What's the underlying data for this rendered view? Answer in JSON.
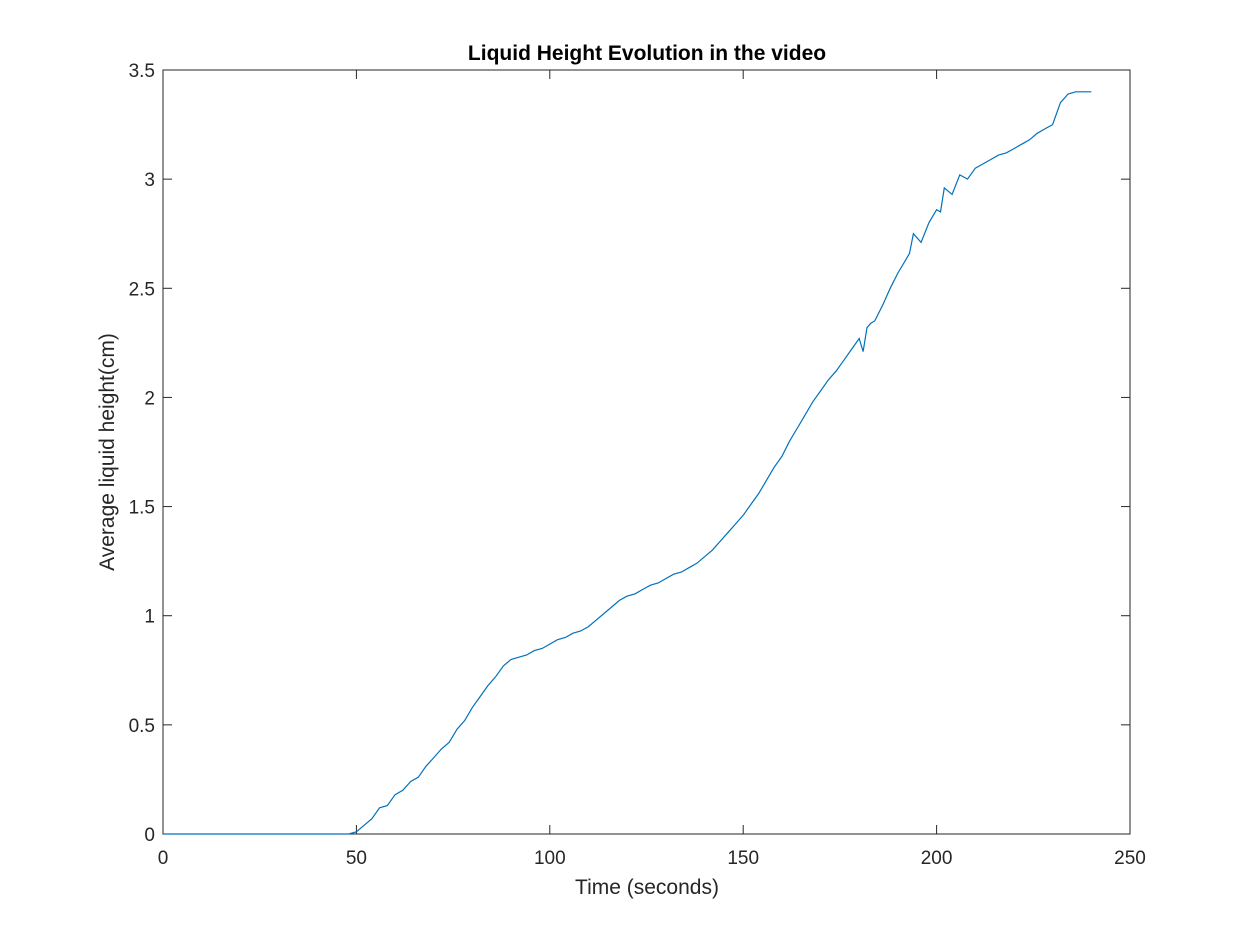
{
  "chart_data": {
    "type": "line",
    "title": "Liquid Height Evolution in the video",
    "xlabel": "Time (seconds)",
    "ylabel": "Average liquid height(cm)",
    "xlim": [
      0,
      250
    ],
    "ylim": [
      0,
      3.5
    ],
    "x_ticks": [
      0,
      50,
      100,
      150,
      200,
      250
    ],
    "x_tick_labels": [
      "0",
      "50",
      "100",
      "150",
      "200",
      "250"
    ],
    "y_ticks": [
      0,
      0.5,
      1,
      1.5,
      2,
      2.5,
      3,
      3.5
    ],
    "y_tick_labels": [
      "0",
      "0.5",
      "1",
      "1.5",
      "2",
      "2.5",
      "3",
      "3.5"
    ],
    "grid": false,
    "line_color": "#0072BD",
    "series": [
      {
        "x": [
          0,
          10,
          20,
          30,
          40,
          48,
          50,
          52,
          54,
          56,
          58,
          60,
          62,
          64,
          66,
          68,
          70,
          72,
          74,
          76,
          78,
          80,
          82,
          84,
          86,
          88,
          90,
          92,
          94,
          96,
          98,
          100,
          102,
          104,
          106,
          108,
          110,
          112,
          114,
          116,
          118,
          120,
          122,
          124,
          126,
          128,
          130,
          132,
          134,
          136,
          138,
          140,
          142,
          144,
          146,
          148,
          150,
          152,
          154,
          156,
          158,
          160,
          162,
          164,
          166,
          168,
          170,
          172,
          174,
          176,
          178,
          180,
          181,
          182,
          183,
          184,
          186,
          188,
          190,
          192,
          193,
          194,
          196,
          198,
          200,
          201,
          202,
          204,
          206,
          208,
          210,
          212,
          214,
          216,
          218,
          220,
          222,
          224,
          226,
          228,
          230,
          232,
          234,
          236,
          238,
          240
        ],
        "y": [
          0,
          0,
          0,
          0,
          0,
          0,
          0.01,
          0.04,
          0.07,
          0.12,
          0.13,
          0.18,
          0.2,
          0.24,
          0.26,
          0.31,
          0.35,
          0.39,
          0.42,
          0.48,
          0.52,
          0.58,
          0.63,
          0.68,
          0.72,
          0.77,
          0.8,
          0.81,
          0.82,
          0.84,
          0.85,
          0.87,
          0.89,
          0.9,
          0.92,
          0.93,
          0.95,
          0.98,
          1.01,
          1.04,
          1.07,
          1.09,
          1.1,
          1.12,
          1.14,
          1.15,
          1.17,
          1.19,
          1.2,
          1.22,
          1.24,
          1.27,
          1.3,
          1.34,
          1.38,
          1.42,
          1.46,
          1.51,
          1.56,
          1.62,
          1.68,
          1.73,
          1.8,
          1.86,
          1.92,
          1.98,
          2.03,
          2.08,
          2.12,
          2.17,
          2.22,
          2.27,
          2.21,
          2.32,
          2.34,
          2.35,
          2.42,
          2.5,
          2.57,
          2.63,
          2.66,
          2.75,
          2.71,
          2.8,
          2.86,
          2.85,
          2.96,
          2.93,
          3.02,
          3.0,
          3.05,
          3.07,
          3.09,
          3.11,
          3.12,
          3.14,
          3.16,
          3.18,
          3.21,
          3.23,
          3.25,
          3.35,
          3.39,
          3.4,
          3.4,
          3.4
        ]
      }
    ]
  }
}
